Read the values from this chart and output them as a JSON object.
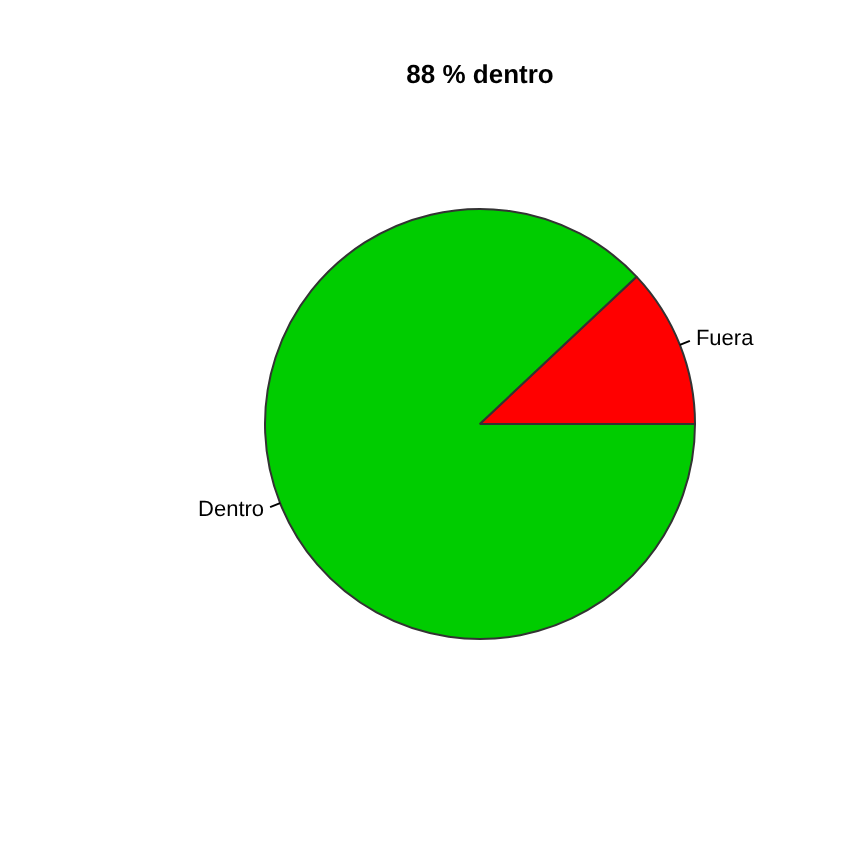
{
  "chart_data": {
    "type": "pie",
    "title": "88 % dentro",
    "categories": [
      "Dentro",
      "Fuera"
    ],
    "values": [
      88,
      12
    ],
    "colors": [
      "#00cc00",
      "#ff0000"
    ],
    "legend": false
  }
}
